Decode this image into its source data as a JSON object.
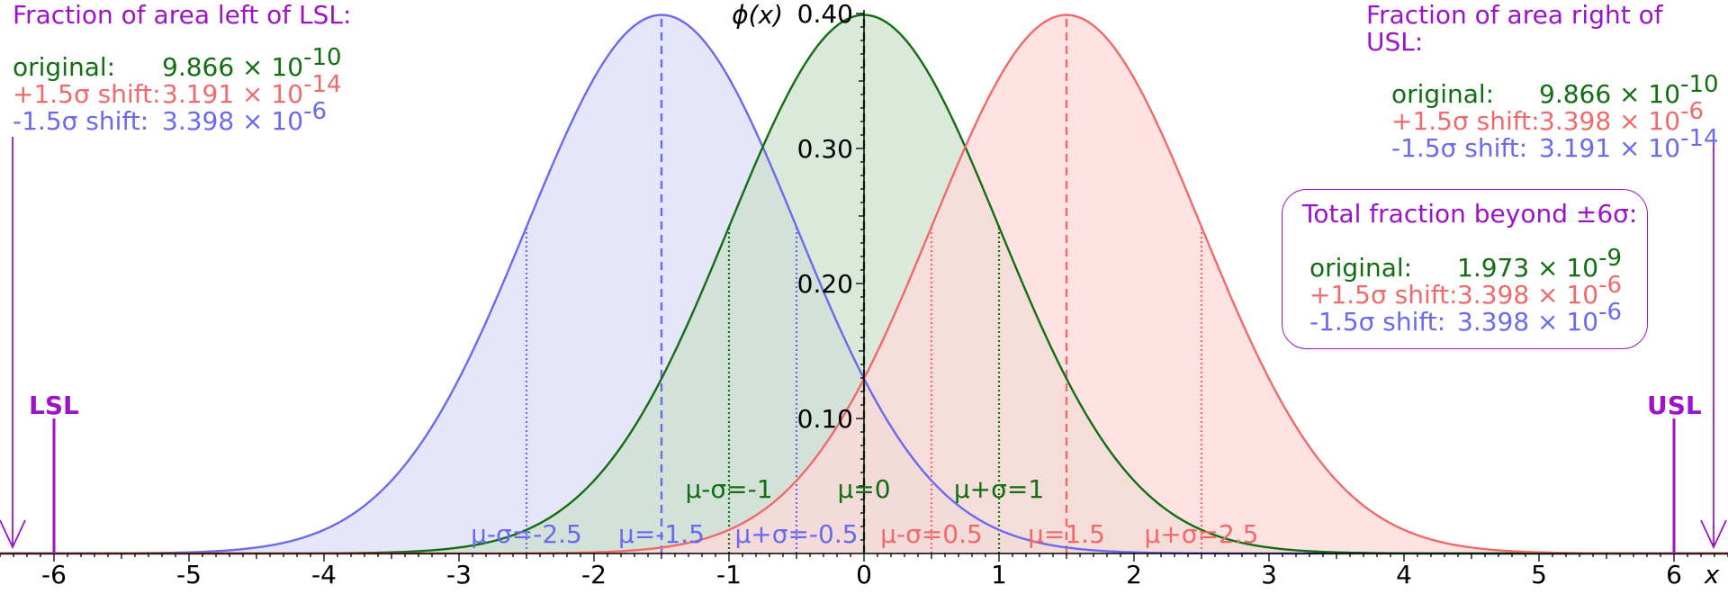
{
  "colors": {
    "original": "#116e11",
    "plus_shift": "#ef6a6a",
    "minus_shift": "#6a6aef",
    "annotation": "#9b14c8",
    "fill_original": "#cce0cc",
    "fill_plus": "#ffd8d8",
    "fill_minus": "#dcdcfa"
  },
  "left_panel": {
    "title": "Fraction of area left of LSL:",
    "rows": [
      {
        "label": "original:",
        "mant": "9.866 × 10",
        "exp": "-10"
      },
      {
        "label": "+1.5σ shift:",
        "mant": "3.191 × 10",
        "exp": "-14"
      },
      {
        "label": "-1.5σ shift:",
        "mant": "3.398 × 10",
        "exp": "-6"
      }
    ]
  },
  "right_panel": {
    "title": "Fraction of area right of USL:",
    "rows": [
      {
        "label": "original:",
        "mant": "9.866 × 10",
        "exp": "-10"
      },
      {
        "label": "+1.5σ shift:",
        "mant": "3.398 × 10",
        "exp": "-6"
      },
      {
        "label": "-1.5σ shift:",
        "mant": "3.191 × 10",
        "exp": "-14"
      }
    ]
  },
  "total_box": {
    "title": "Total fraction beyond ±6σ:",
    "rows": [
      {
        "label": "original:",
        "mant": "1.973 × 10",
        "exp": "-9"
      },
      {
        "label": "+1.5σ shift:",
        "mant": "3.398 × 10",
        "exp": "-6"
      },
      {
        "label": "-1.5σ shift:",
        "mant": "3.398 × 10",
        "exp": "-6"
      }
    ]
  },
  "spec_limits": {
    "lsl_label": "LSL",
    "usl_label": "USL",
    "lsl": -6,
    "usl": 6
  },
  "chart_data": {
    "type": "area",
    "ylabel": "ϕ(x)",
    "xlabel": "x",
    "xlim": [
      -6.4,
      6.4
    ],
    "ylim": [
      0,
      0.4
    ],
    "x_ticks": [
      -6,
      -5,
      -4,
      -3,
      -2,
      -1,
      0,
      1,
      2,
      3,
      4,
      5,
      6
    ],
    "x_tick_labels": [
      "-6",
      "-5",
      "-4",
      "-3",
      "-2",
      "-1",
      "0",
      "1",
      "2",
      "3",
      "4",
      "5",
      "6"
    ],
    "y_ticks": [
      0.1,
      0.2,
      0.3,
      0.4
    ],
    "y_tick_labels": [
      "0.10",
      "0.20",
      "0.30",
      "0.40"
    ],
    "series": [
      {
        "key": "original",
        "mean": 0,
        "sd": 1,
        "color": "#116e11",
        "fill": "#cce0cc",
        "mean_label": "μ=0",
        "lower_label": "μ-σ=-1",
        "upper_label": "μ+σ=1"
      },
      {
        "key": "minus",
        "mean": -1.5,
        "sd": 1,
        "color": "#6a6aef",
        "fill": "#dcdcfa",
        "mean_label": "μ=-1.5",
        "lower_label": "μ-σ=-2.5",
        "upper_label": "μ+σ=-0.5"
      },
      {
        "key": "plus",
        "mean": 1.5,
        "sd": 1,
        "color": "#ef6a6a",
        "fill": "#ffd8d8",
        "mean_label": "μ=1.5",
        "lower_label": "μ-σ=0.5",
        "upper_label": "μ+σ=2.5"
      }
    ]
  }
}
